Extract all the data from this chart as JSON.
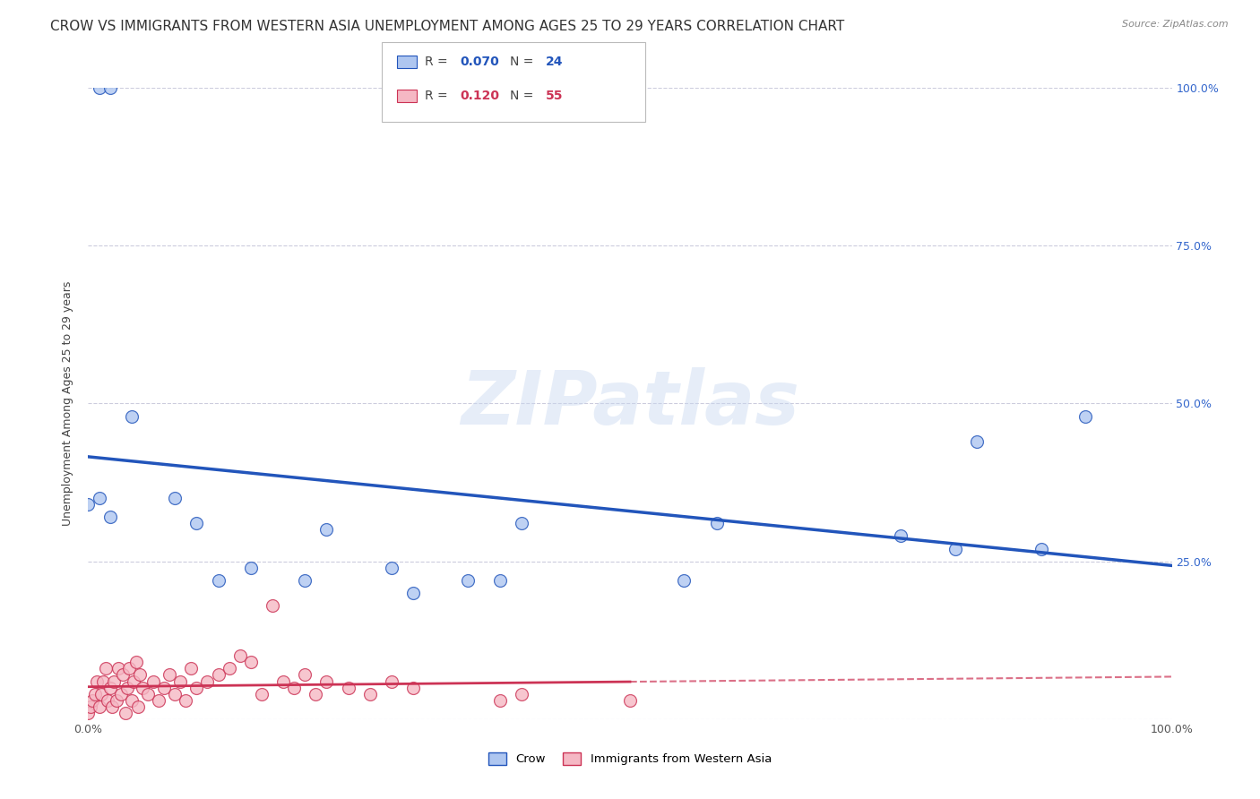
{
  "title": "CROW VS IMMIGRANTS FROM WESTERN ASIA UNEMPLOYMENT AMONG AGES 25 TO 29 YEARS CORRELATION CHART",
  "source": "Source: ZipAtlas.com",
  "ylabel": "Unemployment Among Ages 25 to 29 years",
  "watermark": "ZIPatlas",
  "crow_R": 0.07,
  "crow_N": 24,
  "imm_R": 0.12,
  "imm_N": 55,
  "crow_color": "#aec6f0",
  "imm_color": "#f5b8c4",
  "crow_line_color": "#2255bb",
  "imm_line_color": "#cc3355",
  "crow_points_x": [
    0.01,
    0.02,
    0.0,
    0.01,
    0.02,
    0.04,
    0.08,
    0.1,
    0.12,
    0.15,
    0.2,
    0.22,
    0.28,
    0.3,
    0.35,
    0.38,
    0.4,
    0.55,
    0.58,
    0.75,
    0.8,
    0.82,
    0.88,
    0.92
  ],
  "crow_points_y": [
    1.0,
    1.0,
    0.34,
    0.35,
    0.32,
    0.48,
    0.35,
    0.31,
    0.22,
    0.24,
    0.22,
    0.3,
    0.24,
    0.2,
    0.22,
    0.22,
    0.31,
    0.22,
    0.31,
    0.29,
    0.27,
    0.44,
    0.27,
    0.48
  ],
  "imm_points_x": [
    0.0,
    0.002,
    0.004,
    0.006,
    0.008,
    0.01,
    0.012,
    0.014,
    0.016,
    0.018,
    0.02,
    0.022,
    0.024,
    0.026,
    0.028,
    0.03,
    0.032,
    0.034,
    0.036,
    0.038,
    0.04,
    0.042,
    0.044,
    0.046,
    0.048,
    0.05,
    0.055,
    0.06,
    0.065,
    0.07,
    0.075,
    0.08,
    0.085,
    0.09,
    0.095,
    0.1,
    0.11,
    0.12,
    0.13,
    0.14,
    0.15,
    0.16,
    0.17,
    0.18,
    0.19,
    0.2,
    0.21,
    0.22,
    0.24,
    0.26,
    0.28,
    0.3,
    0.38,
    0.4,
    0.5
  ],
  "imm_points_y": [
    0.01,
    0.02,
    0.03,
    0.04,
    0.06,
    0.02,
    0.04,
    0.06,
    0.08,
    0.03,
    0.05,
    0.02,
    0.06,
    0.03,
    0.08,
    0.04,
    0.07,
    0.01,
    0.05,
    0.08,
    0.03,
    0.06,
    0.09,
    0.02,
    0.07,
    0.05,
    0.04,
    0.06,
    0.03,
    0.05,
    0.07,
    0.04,
    0.06,
    0.03,
    0.08,
    0.05,
    0.06,
    0.07,
    0.08,
    0.1,
    0.09,
    0.04,
    0.18,
    0.06,
    0.05,
    0.07,
    0.04,
    0.06,
    0.05,
    0.04,
    0.06,
    0.05,
    0.03,
    0.04,
    0.03
  ],
  "xlim": [
    0.0,
    1.0
  ],
  "ylim": [
    0.0,
    1.0
  ],
  "xticks": [
    0.0,
    0.2,
    0.4,
    0.6,
    0.8,
    1.0
  ],
  "xticklabels": [
    "0.0%",
    "",
    "",
    "",
    "",
    "100.0%"
  ],
  "yticks": [
    0.0,
    0.25,
    0.5,
    0.75,
    1.0
  ],
  "yticklabels_right": [
    "",
    "25.0%",
    "50.0%",
    "75.0%",
    "100.0%"
  ],
  "grid_color": "#ccccdd",
  "bg_color": "#ffffff",
  "title_fontsize": 11,
  "axis_fontsize": 9,
  "marker_size": 100
}
